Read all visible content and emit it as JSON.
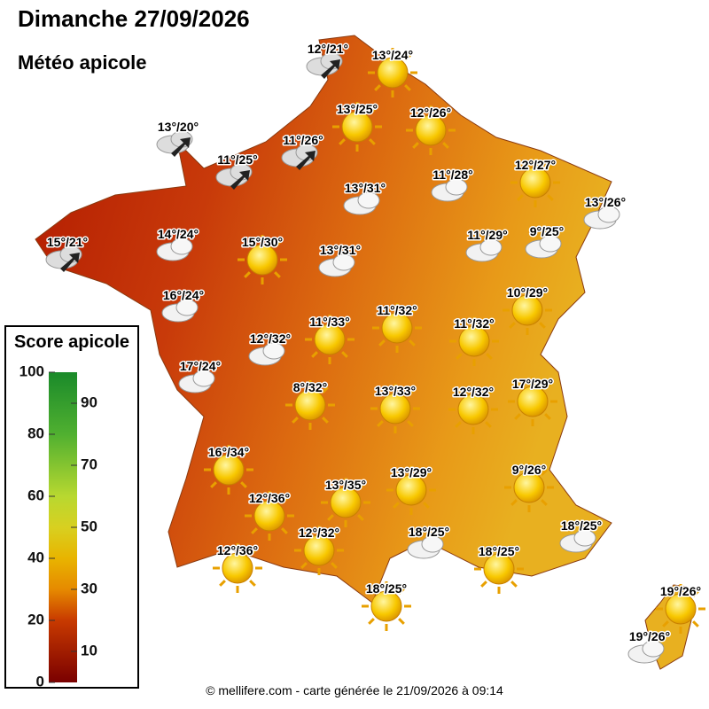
{
  "header": {
    "title": "Dimanche 27/09/2026",
    "subtitle": "Météo apicole"
  },
  "stations": [
    "12°/21°",
    "13°/24°",
    "13°/25°",
    "12°/26°",
    "13°/20°",
    "11°/26°",
    "11°/25°",
    "12°/27°",
    "11°/28°",
    "13°/31°",
    "13°/26°",
    "14°/24°",
    "11°/29°",
    "9°/25°",
    "15°/30°",
    "15°/21°",
    "13°/31°",
    "16°/24°",
    "10°/29°",
    "11°/32°",
    "11°/33°",
    "11°/32°",
    "12°/32°",
    "17°/24°",
    "8°/32°",
    "13°/33°",
    "12°/32°",
    "17°/29°",
    "16°/34°",
    "9°/26°",
    "13°/29°",
    "13°/35°",
    "12°/36°",
    "18°/25°",
    "18°/25°",
    "12°/32°",
    "12°/36°",
    "18°/25°",
    "18°/25°",
    "19°/26°",
    "19°/26°"
  ],
  "legend": {
    "title": "Score apicole",
    "range": [
      0,
      100
    ],
    "ticks_left": [
      0,
      20,
      40,
      60,
      80,
      100
    ],
    "ticks_right": [
      10,
      30,
      50,
      70,
      90
    ]
  },
  "footer": "© mellifere.com - carte générée le 21/09/2026 à 09:14"
}
